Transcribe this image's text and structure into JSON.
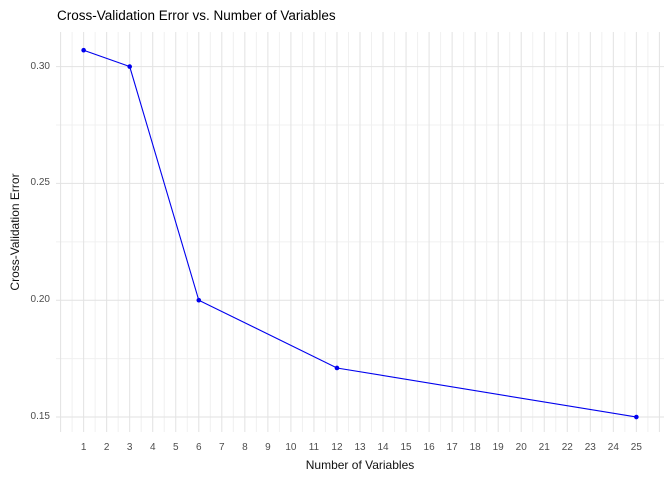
{
  "chart_data": {
    "type": "line",
    "title": "Cross-Validation Error vs. Number of Variables",
    "xlabel": "Number of Variables",
    "ylabel": "Cross-Validation Error",
    "series": [
      {
        "name": "cross-validation-error",
        "points": [
          {
            "x": 1,
            "y": 0.307
          },
          {
            "x": 3,
            "y": 0.3
          },
          {
            "x": 6,
            "y": 0.2
          },
          {
            "x": 12,
            "y": 0.171
          },
          {
            "x": 25,
            "y": 0.15
          }
        ]
      }
    ],
    "x_ticks": [
      1,
      2,
      3,
      4,
      5,
      6,
      7,
      8,
      9,
      10,
      11,
      12,
      13,
      14,
      15,
      16,
      17,
      18,
      19,
      20,
      21,
      22,
      23,
      24,
      25
    ],
    "y_ticks": [
      {
        "value": 0.15,
        "label": "0.15"
      },
      {
        "value": 0.2,
        "label": "0.20"
      },
      {
        "value": 0.25,
        "label": "0.25"
      },
      {
        "value": 0.3,
        "label": "0.30"
      }
    ],
    "x_grid_major": [
      0,
      1,
      2,
      3,
      4,
      5,
      6,
      7,
      8,
      9,
      10,
      11,
      12,
      13,
      14,
      15,
      16,
      17,
      18,
      19,
      20,
      21,
      22,
      23,
      24,
      25,
      26
    ],
    "x_grid_minor": [
      0.5,
      1.5,
      2.5,
      3.5,
      4.5,
      5.5,
      6.5,
      7.5,
      8.5,
      9.5,
      10.5,
      11.5,
      12.5,
      13.5,
      14.5,
      15.5,
      16.5,
      17.5,
      18.5,
      19.5,
      20.5,
      21.5,
      22.5,
      23.5,
      24.5,
      25.5
    ],
    "y_grid_minor": [
      0.175,
      0.225,
      0.275
    ],
    "xlim": [
      -0.2,
      26.2
    ],
    "ylim": [
      0.1436,
      0.3148
    ],
    "grid": true,
    "legend": "none",
    "colors": {
      "line": "#0000EE",
      "point": "#0000EE",
      "grid_major": "#E2E2E2",
      "grid_minor": "#F0F0F0",
      "tick_label": "#4D4D4D",
      "axis_title": "#111111",
      "title": "#000000",
      "background": "#FFFFFF"
    }
  }
}
